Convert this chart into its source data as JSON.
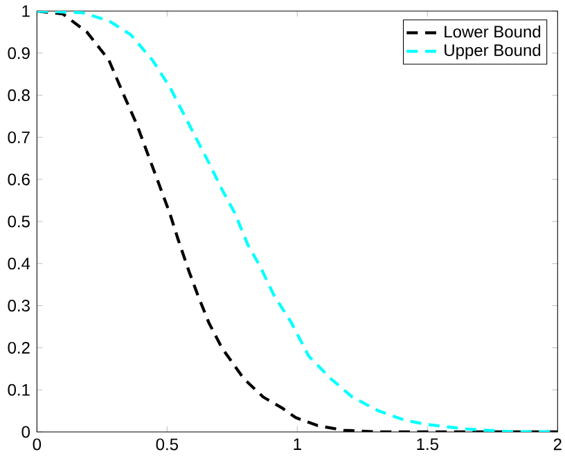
{
  "chart_data": {
    "type": "line",
    "xlim": [
      0,
      2
    ],
    "ylim": [
      0,
      1
    ],
    "xticks": [
      0,
      0.5,
      1,
      1.5,
      2
    ],
    "yticks": [
      0,
      0.1,
      0.2,
      0.3,
      0.4,
      0.5,
      0.6,
      0.7,
      0.8,
      0.9,
      1
    ],
    "legend": "top right",
    "line_style": "dashed",
    "marker": "none",
    "grid": false,
    "series": [
      {
        "name": "Lower Bound",
        "color": "#000000",
        "x": [
          0,
          0.1,
          0.192,
          0.276,
          0.334,
          0.384,
          0.426,
          0.468,
          0.51,
          0.543,
          0.585,
          0.618,
          0.66,
          0.71,
          0.794,
          0.869,
          0.944,
          0.994,
          1.078,
          1.178,
          1.31,
          1.5,
          2
        ],
        "values": [
          1,
          0.993,
          0.95,
          0.884,
          0.8,
          0.73,
          0.66,
          0.59,
          0.52,
          0.456,
          0.38,
          0.325,
          0.26,
          0.2,
          0.127,
          0.083,
          0.056,
          0.034,
          0.015,
          0.004,
          0,
          0,
          0
        ]
      },
      {
        "name": "Upper Bound",
        "color": "#00ffff",
        "x": [
          0,
          0.175,
          0.276,
          0.36,
          0.443,
          0.51,
          0.56,
          0.61,
          0.66,
          0.71,
          0.76,
          0.81,
          0.86,
          0.91,
          0.977,
          1.044,
          1.128,
          1.211,
          1.312,
          1.412,
          1.495,
          1.646,
          1.813,
          2
        ],
        "values": [
          1,
          0.996,
          0.977,
          0.944,
          0.884,
          0.82,
          0.76,
          0.7,
          0.64,
          0.577,
          0.52,
          0.445,
          0.39,
          0.325,
          0.26,
          0.18,
          0.127,
          0.083,
          0.05,
          0.028,
          0.018,
          0.007,
          0.001,
          0
        ]
      }
    ]
  }
}
